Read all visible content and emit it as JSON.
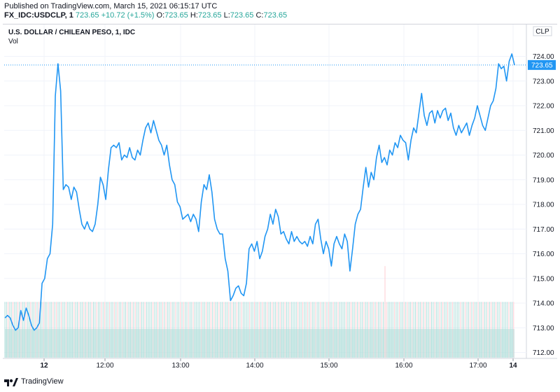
{
  "header": {
    "published": "Published on TradingView.com, March 15, 2021 06:15:17 UTC",
    "symbol": "FX_IDC:USDCLP, 1",
    "last": "723.65",
    "change": "+10.72 (+1.5%)",
    "o_label": "O:",
    "o_value": "723.65",
    "h_label": "H:",
    "h_value": "723.65",
    "l_label": "L:",
    "l_value": "723.65",
    "c_label": "C:",
    "c_value": "723.65"
  },
  "pane": {
    "title": "U.S. DOLLAR / CHILEAN PESO, 1, IDC",
    "vol_label": "Vol",
    "currency": "CLP"
  },
  "footer": {
    "brand": "TradingView"
  },
  "colors": {
    "line": "#2196f3",
    "up_volume": "#b2dfdb",
    "down_volume": "#ffcdd2",
    "last_price_badge": "#2196f3",
    "grid": "#f0f3fa",
    "header_value": "#26a69a"
  },
  "chart_data": {
    "type": "line",
    "title": "U.S. DOLLAR / CHILEAN PESO, 1, IDC",
    "ylim": [
      711.8,
      724.6
    ],
    "y_ticks": [
      "712.00",
      "713.00",
      "714.00",
      "715.00",
      "716.00",
      "717.00",
      "718.00",
      "719.00",
      "720.00",
      "721.00",
      "722.00",
      "723.00",
      "724.00"
    ],
    "x_ticks": [
      "12",
      "12:00",
      "13:00",
      "14:00",
      "15:00",
      "16:00",
      "17:00",
      "14"
    ],
    "last_value_label": "723.65",
    "grid": true,
    "series": [
      {
        "values": [
          713.4,
          713.5,
          713.4,
          713.1,
          712.9,
          713.0,
          713.7,
          713.3,
          713.8,
          713.5,
          713.1,
          712.9,
          713.0,
          713.2,
          714.8,
          715.0,
          715.8,
          716.0,
          717.2,
          722.4,
          723.7,
          722.6,
          718.6,
          718.8,
          718.7,
          718.2,
          718.7,
          718.5,
          717.8,
          717.2,
          717.0,
          717.3,
          717.0,
          716.9,
          717.2,
          718.0,
          719.1,
          718.8,
          718.2,
          719.4,
          720.3,
          720.4,
          720.3,
          720.5,
          719.8,
          720.0,
          719.9,
          720.3,
          719.9,
          719.8,
          720.2,
          720.0,
          720.6,
          721.1,
          721.3,
          720.9,
          721.4,
          721.0,
          720.6,
          720.4,
          720.0,
          720.4,
          719.6,
          719.0,
          718.8,
          718.1,
          717.9,
          717.4,
          717.5,
          717.6,
          717.3,
          717.6,
          717.4,
          716.9,
          718.1,
          718.8,
          718.6,
          719.2,
          718.5,
          717.4,
          717.0,
          716.8,
          716.8,
          715.8,
          715.3,
          714.1,
          714.3,
          714.6,
          714.7,
          714.4,
          714.3,
          714.8,
          716.2,
          716.4,
          716.1,
          716.5,
          715.8,
          716.1,
          716.7,
          717.0,
          717.6,
          717.2,
          717.8,
          717.5,
          716.8,
          716.9,
          716.6,
          716.4,
          716.9,
          716.5,
          716.7,
          716.5,
          716.4,
          716.5,
          716.3,
          716.7,
          716.4,
          717.2,
          717.4,
          716.6,
          716.0,
          716.5,
          716.2,
          715.5,
          716.4,
          716.7,
          716.4,
          716.2,
          716.8,
          716.5,
          715.3,
          716.2,
          717.2,
          717.6,
          717.8,
          718.7,
          719.5,
          718.7,
          719.3,
          719.0,
          719.9,
          720.4,
          719.7,
          719.9,
          719.6,
          720.2,
          720.0,
          720.5,
          720.3,
          720.8,
          720.6,
          720.5,
          719.8,
          720.6,
          721.1,
          720.9,
          721.7,
          722.5,
          721.6,
          721.2,
          721.7,
          721.8,
          721.3,
          721.8,
          721.5,
          721.8,
          721.9,
          721.4,
          721.7,
          721.1,
          720.8,
          721.2,
          720.9,
          721.1,
          721.3,
          720.8,
          721.2,
          721.5,
          722.0,
          721.6,
          721.2,
          721.0,
          721.5,
          722.0,
          722.2,
          722.7,
          723.7,
          723.5,
          723.6,
          723.0,
          723.8,
          724.1,
          723.65
        ]
      }
    ],
    "volume": {
      "baseline_value": 712.9,
      "bars": "uniform minute volume bars from 12 to 14; one spike near 15:45"
    }
  }
}
